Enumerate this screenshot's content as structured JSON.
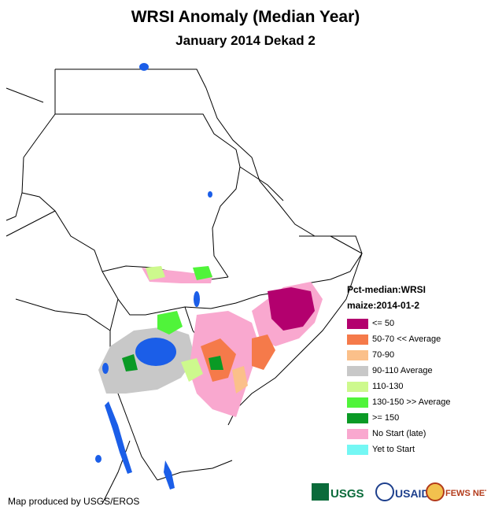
{
  "title": "WRSI Anomaly (Median Year)",
  "subtitle": "January 2014 Dekad 2",
  "legend": {
    "title_line1": "Pct-median:WRSI",
    "title_line2": "maize:2014-01-2",
    "items": [
      {
        "label": "<= 50",
        "color": "#b3006e"
      },
      {
        "label": "50-70 << Average",
        "color": "#f57a4a"
      },
      {
        "label": "70-90",
        "color": "#fbc08a"
      },
      {
        "label": "90-110 Average",
        "color": "#c8c8c8"
      },
      {
        "label": "110-130",
        "color": "#cdf98d"
      },
      {
        "label": "130-150 >> Average",
        "color": "#50f43a"
      },
      {
        "label": ">= 150",
        "color": "#0a9a25"
      },
      {
        "label": "No Start (late)",
        "color": "#f9a8cf"
      },
      {
        "label": "Yet to Start",
        "color": "#74f7f4"
      }
    ]
  },
  "credit": "Map produced by USGS/EROS",
  "logos": {
    "usgs": "USGS",
    "usaid": "USAID",
    "fewsnet": "FEWS NET"
  },
  "colors": {
    "water": "#1b5ee8",
    "border": "#000000"
  }
}
